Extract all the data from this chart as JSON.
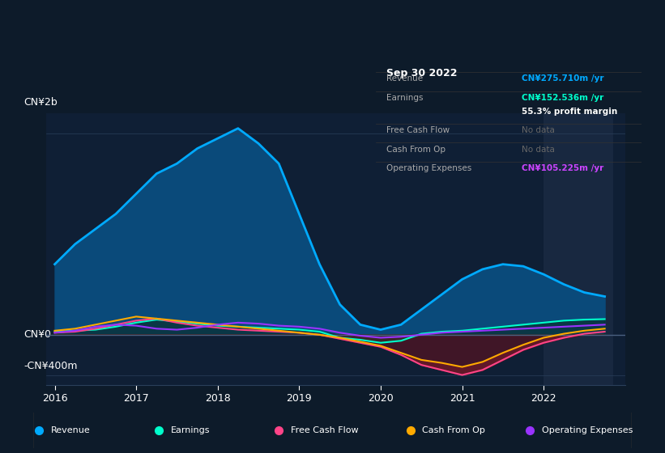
{
  "bg_color": "#0d1b2a",
  "chart_bg": "#0d1b2a",
  "plot_bg": "#0f1f35",
  "highlight_bg": "#162030",
  "grid_color": "#2a3f5a",
  "zero_line_color": "#4a6080",
  "ylabel_text": "CN¥2b",
  "ylabel_bottom": "-CN¥400m",
  "ylim": [
    -500000000,
    2200000000
  ],
  "yticks": [
    -400000000,
    0,
    2000000000
  ],
  "ytick_labels": [
    "-CN¥400m",
    "CN¥0",
    "CN¥2b"
  ],
  "x_years": [
    2016,
    2016.25,
    2016.5,
    2016.75,
    2017,
    2017.25,
    2017.5,
    2017.75,
    2018,
    2018.25,
    2018.5,
    2018.75,
    2019,
    2019.25,
    2019.5,
    2019.75,
    2020,
    2020.25,
    2020.5,
    2020.75,
    2021,
    2021.25,
    2021.5,
    2021.75,
    2022,
    2022.25,
    2022.5,
    2022.75
  ],
  "revenue": [
    700000000,
    900000000,
    1050000000,
    1200000000,
    1400000000,
    1600000000,
    1700000000,
    1850000000,
    1950000000,
    2050000000,
    1900000000,
    1700000000,
    1200000000,
    700000000,
    300000000,
    100000000,
    50000000,
    100000000,
    250000000,
    400000000,
    550000000,
    650000000,
    700000000,
    680000000,
    600000000,
    500000000,
    420000000,
    380000000
  ],
  "earnings": [
    30000000,
    40000000,
    50000000,
    80000000,
    120000000,
    150000000,
    130000000,
    110000000,
    90000000,
    80000000,
    70000000,
    60000000,
    50000000,
    30000000,
    -30000000,
    -50000000,
    -80000000,
    -60000000,
    10000000,
    30000000,
    40000000,
    60000000,
    80000000,
    100000000,
    120000000,
    140000000,
    150000000,
    155000000
  ],
  "free_cash_flow": [
    20000000,
    30000000,
    60000000,
    100000000,
    140000000,
    160000000,
    120000000,
    90000000,
    70000000,
    50000000,
    40000000,
    30000000,
    20000000,
    0,
    -40000000,
    -80000000,
    -120000000,
    -200000000,
    -300000000,
    -350000000,
    -400000000,
    -350000000,
    -250000000,
    -150000000,
    -80000000,
    -30000000,
    10000000,
    30000000
  ],
  "cash_from_op": [
    40000000,
    60000000,
    100000000,
    140000000,
    180000000,
    160000000,
    140000000,
    120000000,
    100000000,
    80000000,
    60000000,
    40000000,
    20000000,
    0,
    -30000000,
    -70000000,
    -110000000,
    -180000000,
    -250000000,
    -280000000,
    -320000000,
    -270000000,
    -180000000,
    -100000000,
    -30000000,
    10000000,
    40000000,
    60000000
  ],
  "op_expenses": [
    20000000,
    40000000,
    80000000,
    100000000,
    90000000,
    60000000,
    50000000,
    70000000,
    100000000,
    120000000,
    110000000,
    90000000,
    80000000,
    60000000,
    20000000,
    -10000000,
    -30000000,
    -20000000,
    0,
    20000000,
    30000000,
    40000000,
    50000000,
    60000000,
    70000000,
    80000000,
    90000000,
    100000000
  ],
  "revenue_color": "#00aaff",
  "earnings_color": "#00ffcc",
  "fcf_color": "#ff4488",
  "cash_color": "#ffaa00",
  "opex_color": "#9933ff",
  "revenue_fill": "#0a4a7a",
  "earnings_fill_pos": "#0a3a3a",
  "negative_fill": "#5a1a2a",
  "highlight_x_start": 2022.0,
  "tooltip": {
    "title": "Sep 30 2022",
    "rows": [
      {
        "label": "Revenue",
        "value": "CN¥275.710m /yr",
        "value_color": "#00aaff"
      },
      {
        "label": "Earnings",
        "value": "CN¥152.536m /yr",
        "value_color": "#00ffcc"
      },
      {
        "label": "margin",
        "value": "55.3% profit margin",
        "value_color": "#ffffff"
      },
      {
        "label": "Free Cash Flow",
        "value": "No data",
        "value_color": "#888888"
      },
      {
        "label": "Cash From Op",
        "value": "No data",
        "value_color": "#888888"
      },
      {
        "label": "Operating Expenses",
        "value": "CN¥105.225m /yr",
        "value_color": "#cc44ff"
      }
    ]
  },
  "legend": [
    {
      "label": "Revenue",
      "color": "#00aaff"
    },
    {
      "label": "Earnings",
      "color": "#00ffcc"
    },
    {
      "label": "Free Cash Flow",
      "color": "#ff4488"
    },
    {
      "label": "Cash From Op",
      "color": "#ffaa00"
    },
    {
      "label": "Operating Expenses",
      "color": "#9933ff"
    }
  ],
  "xticks": [
    2016,
    2017,
    2018,
    2019,
    2020,
    2021,
    2022
  ]
}
